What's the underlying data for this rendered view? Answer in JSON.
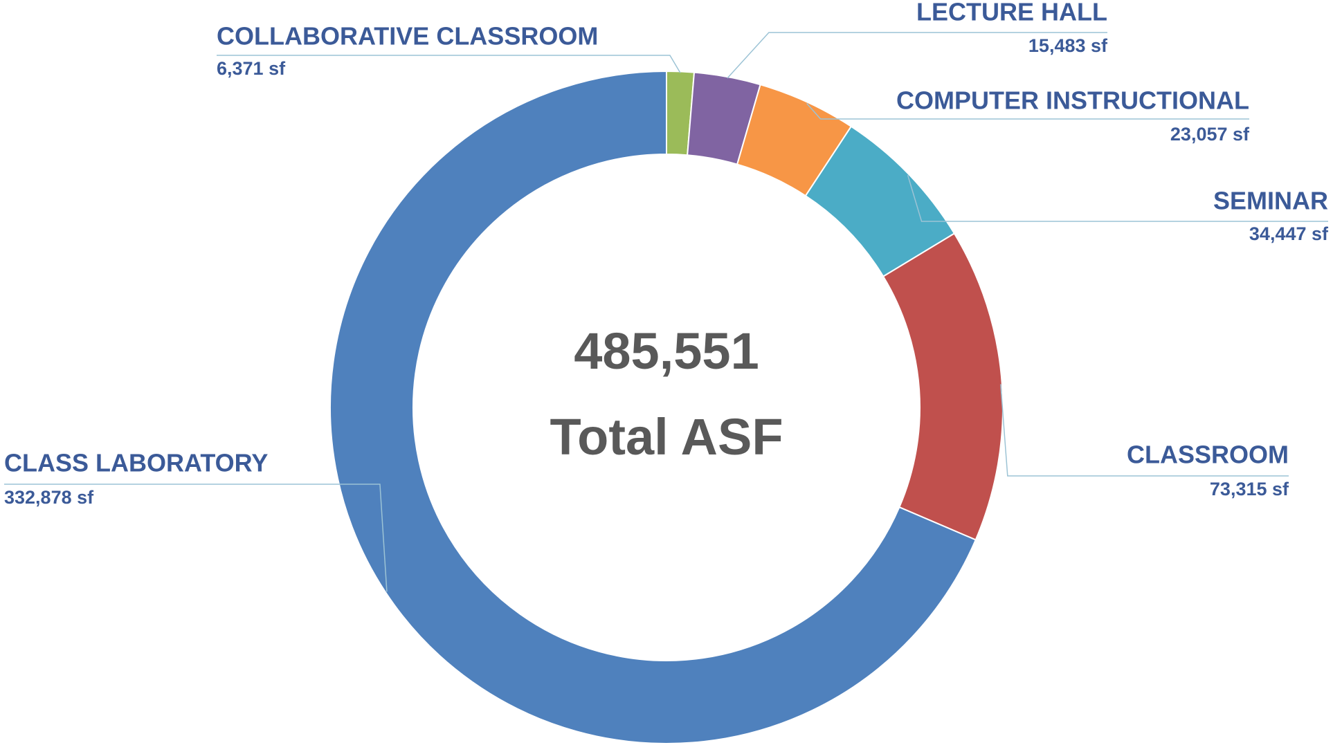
{
  "chart_data": {
    "type": "donut",
    "categories": [
      "COLLABORATIVE CLASSROOM",
      "LECTURE HALL",
      "COMPUTER INSTRUCTIONAL",
      "SEMINAR",
      "CLASSROOM",
      "CLASS LABORATORY"
    ],
    "values": [
      6371,
      15483,
      23057,
      34447,
      73315,
      332878
    ],
    "value_labels": [
      "6,371 sf",
      "15,483 sf",
      "23,057 sf",
      "34,447 sf",
      "73,315 sf",
      "332,878 sf"
    ],
    "colors": [
      "#9bbb59",
      "#8064a2",
      "#f79646",
      "#4bacc6",
      "#c0504d",
      "#4f81bd"
    ],
    "total": {
      "value": 485551,
      "label": "485,551"
    },
    "total_caption": "Total ASF"
  }
}
